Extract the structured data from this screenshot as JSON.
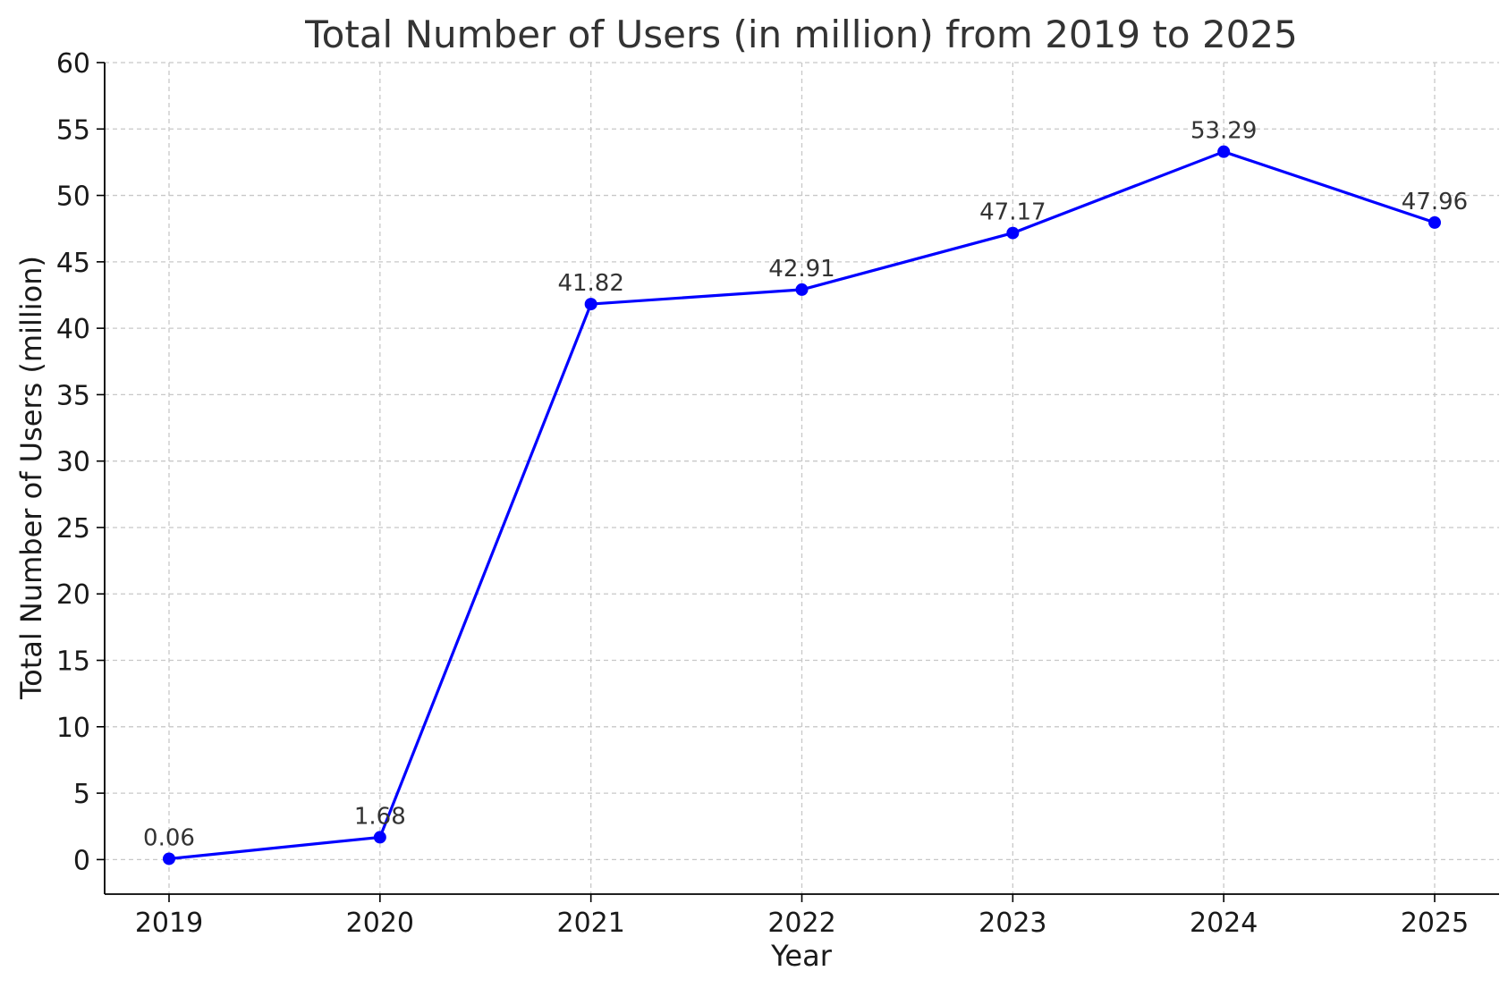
{
  "chart_data": {
    "type": "line",
    "title": "Total Number of Users (in million) from 2019 to 2025",
    "xlabel": "Year",
    "ylabel": "Total Number of Users (million)",
    "categories": [
      "2019",
      "2020",
      "2021",
      "2022",
      "2023",
      "2024",
      "2025"
    ],
    "series": [
      {
        "values": [
          0.06,
          1.68,
          41.82,
          42.91,
          47.17,
          53.29,
          47.96
        ],
        "labels": [
          "0.06",
          "1.68",
          "41.82",
          "42.91",
          "47.17",
          "53.29",
          "47.96"
        ],
        "color": "#0000ff"
      }
    ],
    "ylim": [
      -2.6,
      60
    ],
    "yticks": [
      "0",
      "5",
      "10",
      "15",
      "20",
      "25",
      "30",
      "35",
      "40",
      "45",
      "50",
      "55",
      "60"
    ],
    "ytick_values": [
      0,
      5,
      10,
      15,
      20,
      25,
      30,
      35,
      40,
      45,
      50,
      55,
      60
    ],
    "grid": true,
    "grid_style": "dashed",
    "markers": "circle",
    "colors": {
      "line": "#0000ff",
      "grid": "#c8c8c8",
      "axis": "#000000",
      "text": "#333333",
      "tick_text": "#1a1a1a"
    }
  }
}
